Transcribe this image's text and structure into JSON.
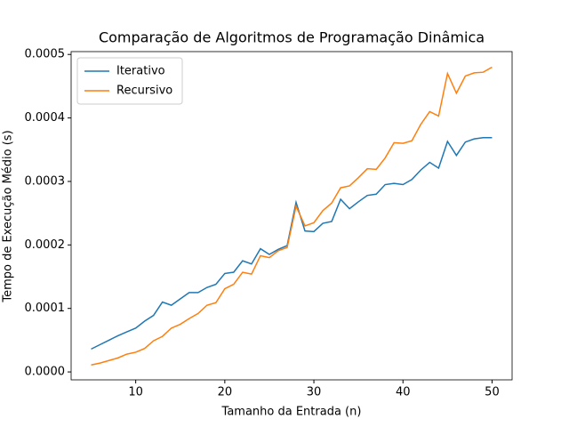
{
  "chart_data": {
    "type": "line",
    "title": "Comparação de Algoritmos de Programação Dinâmica",
    "x_label": "Tamanho da Entrada (n)",
    "y_label": "Tempo de Execução Médio (s)",
    "x": [
      5,
      6,
      7,
      8,
      9,
      10,
      11,
      12,
      13,
      14,
      15,
      16,
      17,
      18,
      19,
      20,
      21,
      22,
      23,
      24,
      25,
      26,
      27,
      28,
      29,
      30,
      31,
      32,
      33,
      34,
      35,
      36,
      37,
      38,
      39,
      40,
      41,
      42,
      43,
      44,
      45,
      46,
      47,
      48,
      49,
      50
    ],
    "series": [
      {
        "name": "Iterativo",
        "color": "#1f77b4",
        "values": [
          3.6e-05,
          4.3e-05,
          5e-05,
          5.7e-05,
          6.3e-05,
          6.9e-05,
          8e-05,
          8.9e-05,
          0.00011,
          0.000105,
          0.000115,
          0.000125,
          0.000125,
          0.000133,
          0.000138,
          0.000155,
          0.000157,
          0.000175,
          0.00017,
          0.000194,
          0.000185,
          0.000193,
          0.000199,
          0.000267,
          0.000222,
          0.000221,
          0.000234,
          0.000237,
          0.000272,
          0.000257,
          0.000268,
          0.000278,
          0.00028,
          0.000295,
          0.000297,
          0.000295,
          0.000303,
          0.000318,
          0.00033,
          0.000321,
          0.000363,
          0.000341,
          0.000362,
          0.000367,
          0.000369,
          0.000369
        ]
      },
      {
        "name": "Recursivo",
        "color": "#ff7f0e",
        "values": [
          1.1e-05,
          1.4e-05,
          1.8e-05,
          2.2e-05,
          2.8e-05,
          3.1e-05,
          3.7e-05,
          4.9e-05,
          5.6e-05,
          6.9e-05,
          7.5e-05,
          8.4e-05,
          9.2e-05,
          0.000105,
          0.000109,
          0.000131,
          0.000138,
          0.000157,
          0.000154,
          0.000183,
          0.00018,
          0.000191,
          0.000196,
          0.000261,
          0.00023,
          0.000235,
          0.000254,
          0.000266,
          0.00029,
          0.000293,
          0.000306,
          0.00032,
          0.000319,
          0.000337,
          0.000361,
          0.00036,
          0.000364,
          0.00039,
          0.00041,
          0.000403,
          0.00047,
          0.000439,
          0.000466,
          0.000471,
          0.000472,
          0.00048
        ]
      }
    ],
    "xlim": [
      2.75,
      52.25
    ],
    "ylim": [
      -1.25e-05,
      0.0005045
    ],
    "xticks": [
      10,
      20,
      30,
      40,
      50
    ],
    "yticks": [
      {
        "value": 0,
        "label": "0.0000"
      },
      {
        "value": 0.0001,
        "label": "0.0001"
      },
      {
        "value": 0.0002,
        "label": "0.0002"
      },
      {
        "value": 0.0003,
        "label": "0.0003"
      },
      {
        "value": 0.0004,
        "label": "0.0004"
      },
      {
        "value": 0.0005,
        "label": "0.0005"
      }
    ],
    "legend": "upper left"
  }
}
